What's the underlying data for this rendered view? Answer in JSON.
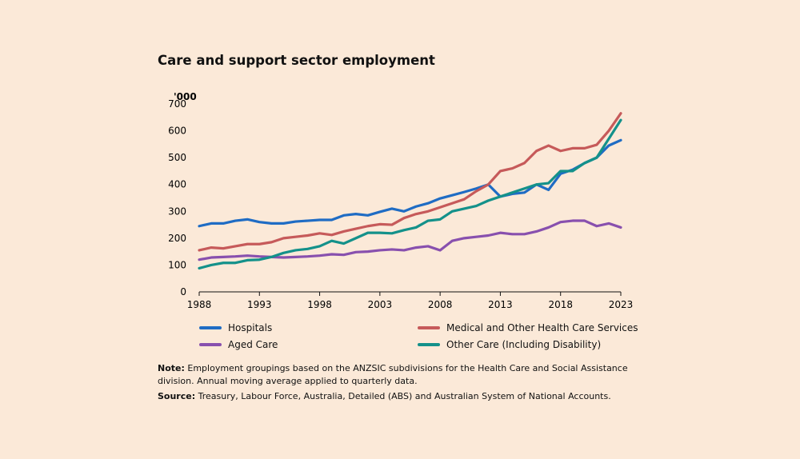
{
  "chart_data": {
    "type": "line",
    "title": "Care and support sector employment",
    "ylabel": "'000",
    "xlim": [
      1988,
      2023
    ],
    "ylim": [
      0,
      700
    ],
    "yticks": [
      0,
      100,
      200,
      300,
      400,
      500,
      600,
      700
    ],
    "xticks": [
      1988,
      1993,
      1998,
      2003,
      2008,
      2013,
      2018,
      2023
    ],
    "grid": false,
    "legend_placement": "bottom",
    "x": [
      1988,
      1989,
      1990,
      1991,
      1992,
      1993,
      1994,
      1995,
      1996,
      1997,
      1998,
      1999,
      2000,
      2001,
      2002,
      2003,
      2004,
      2005,
      2006,
      2007,
      2008,
      2009,
      2010,
      2011,
      2012,
      2013,
      2014,
      2015,
      2016,
      2017,
      2018,
      2019,
      2020,
      2021,
      2022,
      2023
    ],
    "series": [
      {
        "name": "Hospitals",
        "color": "#1f6cc4",
        "values": [
          245,
          255,
          255,
          265,
          270,
          260,
          255,
          255,
          262,
          265,
          268,
          268,
          285,
          290,
          285,
          298,
          310,
          300,
          318,
          330,
          348,
          360,
          372,
          385,
          400,
          355,
          365,
          370,
          400,
          380,
          440,
          455,
          480,
          500,
          545,
          565
        ]
      },
      {
        "name": "Medical and Other Health Care Services",
        "color": "#c65a5a",
        "values": [
          155,
          165,
          162,
          170,
          178,
          178,
          185,
          200,
          205,
          210,
          218,
          212,
          225,
          235,
          245,
          252,
          250,
          275,
          290,
          300,
          315,
          330,
          345,
          375,
          400,
          450,
          460,
          480,
          525,
          545,
          525,
          535,
          535,
          548,
          600,
          665
        ]
      },
      {
        "name": "Aged Care",
        "color": "#8850ae",
        "values": [
          120,
          128,
          130,
          132,
          135,
          132,
          130,
          128,
          130,
          132,
          135,
          140,
          138,
          148,
          150,
          155,
          158,
          155,
          165,
          170,
          155,
          190,
          200,
          205,
          210,
          220,
          215,
          215,
          225,
          240,
          260,
          265,
          265,
          245,
          255,
          240
        ]
      },
      {
        "name": "Other Care (Including Disability)",
        "color": "#14918a",
        "values": [
          88,
          100,
          108,
          108,
          118,
          120,
          130,
          145,
          155,
          160,
          170,
          190,
          180,
          200,
          220,
          220,
          218,
          230,
          240,
          265,
          270,
          300,
          310,
          320,
          340,
          355,
          370,
          385,
          400,
          405,
          450,
          450,
          480,
          500,
          570,
          640
        ]
      }
    ]
  },
  "notes": {
    "note_label": "Note:",
    "note_text": " Employment groupings based on the ANZSIC subdivisions for the Health Care and Social Assistance division. Annual moving average applied to quarterly data.",
    "source_label": "Source:",
    "source_text": " Treasury, Labour Force, Australia, Detailed (ABS) and Australian System of National Accounts."
  }
}
